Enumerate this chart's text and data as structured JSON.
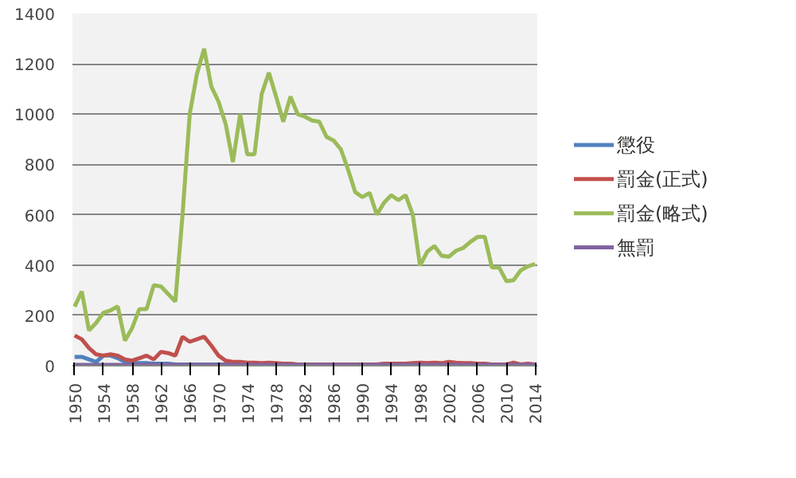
{
  "chart_data": {
    "type": "line",
    "categories": [
      "1950",
      null,
      null,
      null,
      "1954",
      null,
      null,
      null,
      "1958",
      null,
      null,
      null,
      "1962",
      null,
      null,
      null,
      "1966",
      null,
      null,
      null,
      "1970",
      null,
      null,
      null,
      "1974",
      null,
      null,
      null,
      "1978",
      null,
      null,
      null,
      "1982",
      null,
      null,
      null,
      "1986",
      null,
      null,
      null,
      "1990",
      null,
      null,
      null,
      "1994",
      null,
      null,
      null,
      "1998",
      null,
      null,
      null,
      "2002",
      null,
      null,
      null,
      "2006",
      null,
      null,
      null,
      "2010",
      null,
      null,
      null,
      "2014"
    ],
    "series": [
      {
        "name": "懲役",
        "color": "#4f81bd",
        "values": [
          35,
          35,
          25,
          15,
          40,
          40,
          30,
          15,
          10,
          10,
          10,
          8,
          8,
          8,
          5,
          5,
          5,
          5,
          5,
          5,
          5,
          5,
          5,
          null,
          null,
          null,
          null,
          null,
          null,
          null,
          null,
          null,
          null,
          null,
          null,
          null,
          null,
          null,
          null,
          null,
          null,
          null,
          null,
          null,
          null,
          null,
          null,
          null,
          null,
          null,
          null,
          null,
          null,
          null,
          null,
          null,
          null,
          null,
          null,
          null,
          null,
          null,
          null,
          null,
          null
        ]
      },
      {
        "name": "罰金(正式)",
        "color": "#c0504d",
        "values": [
          120,
          105,
          70,
          45,
          40,
          45,
          40,
          25,
          20,
          30,
          40,
          25,
          55,
          50,
          40,
          115,
          95,
          105,
          115,
          80,
          40,
          20,
          15,
          15,
          12,
          12,
          10,
          12,
          10,
          8,
          8,
          5,
          5,
          5,
          5,
          5,
          5,
          5,
          5,
          5,
          5,
          5,
          5,
          8,
          8,
          8,
          8,
          10,
          12,
          10,
          12,
          10,
          15,
          12,
          10,
          10,
          8,
          8,
          5,
          5,
          5,
          12,
          5,
          8,
          5
        ]
      },
      {
        "name": "罰金(略式)",
        "color": "#9bbb59",
        "values": [
          235,
          295,
          140,
          170,
          210,
          220,
          235,
          100,
          150,
          225,
          225,
          320,
          315,
          285,
          255,
          600,
          1000,
          1160,
          1260,
          1110,
          1050,
          960,
          810,
          1000,
          840,
          840,
          1080,
          1165,
          1070,
          970,
          1070,
          1000,
          990,
          975,
          970,
          910,
          895,
          860,
          780,
          690,
          670,
          687,
          600,
          648,
          678,
          658,
          678,
          600,
          398,
          453,
          476,
          437,
          433,
          457,
          468,
          492,
          512,
          512,
          390,
          390,
          336,
          340,
          379,
          395,
          404
        ]
      },
      {
        "name": "無罰",
        "color": "#8064a2",
        "values": [
          3,
          3,
          3,
          3,
          3,
          3,
          3,
          3,
          3,
          3,
          3,
          3,
          3,
          3,
          3,
          3,
          3,
          3,
          3,
          3,
          3,
          3,
          3,
          3,
          3,
          3,
          3,
          3,
          3,
          3,
          3,
          3,
          3,
          3,
          3,
          3,
          3,
          3,
          3,
          3,
          3,
          3,
          3,
          3,
          3,
          3,
          3,
          3,
          3,
          3,
          3,
          3,
          3,
          3,
          3,
          3,
          3,
          3,
          3,
          3,
          3,
          3,
          3,
          3,
          3
        ]
      }
    ],
    "ylim": [
      0,
      1400
    ],
    "yticks": [
      0,
      200,
      400,
      600,
      800,
      1000,
      1200,
      1400
    ],
    "grid": "y",
    "legend": "right"
  }
}
